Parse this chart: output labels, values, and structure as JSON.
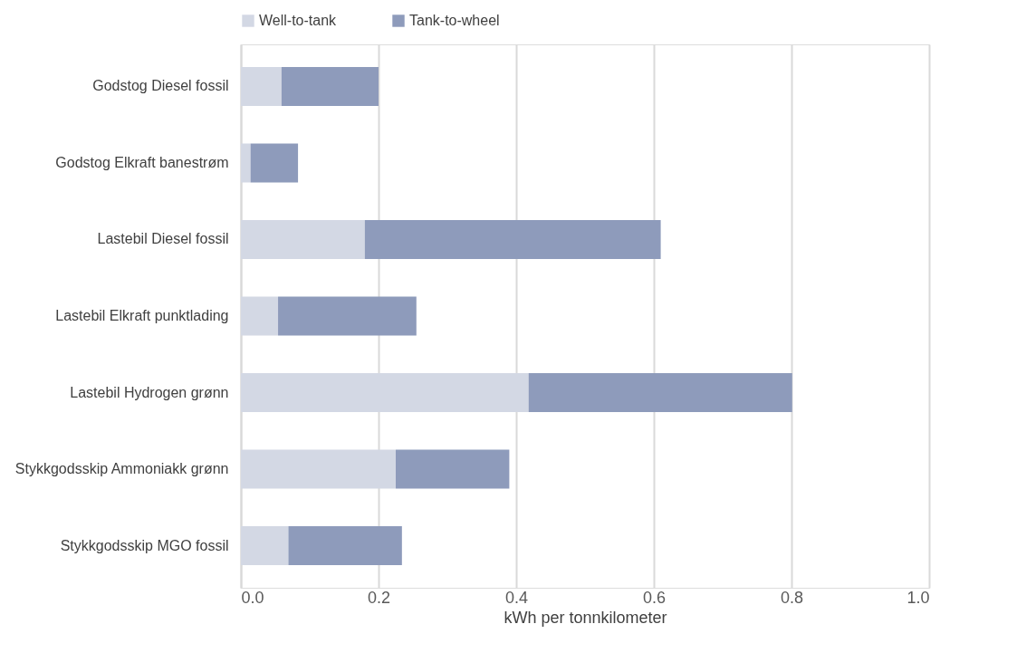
{
  "chart_data": {
    "type": "bar",
    "orientation": "horizontal",
    "stacked": true,
    "categories": [
      "Godstog Diesel fossil",
      "Godstog Elkraft banestrøm",
      "Lastebil Diesel fossil",
      "Lastebil Elkraft punktlading",
      "Lastebil Hydrogen grønn",
      "Stykkgodsskip Ammoniakk grønn",
      "Stykkgodsskip MGO fossil"
    ],
    "series": [
      {
        "name": "Well-to-tank",
        "color": "#d3d8e4",
        "values": [
          0.059,
          0.014,
          0.18,
          0.054,
          0.418,
          0.225,
          0.069
        ]
      },
      {
        "name": "Tank-to-wheel",
        "color": "#8e9bbb",
        "values": [
          0.141,
          0.069,
          0.43,
          0.201,
          0.383,
          0.165,
          0.165
        ]
      }
    ],
    "xlabel": "kWh per tonnkilometer",
    "xlim": [
      0,
      1
    ],
    "xticks": [
      {
        "value": 0,
        "label": "0.0"
      },
      {
        "value": 0.2,
        "label": "0.2"
      },
      {
        "value": 0.4,
        "label": "0.4"
      },
      {
        "value": 0.6,
        "label": "0.6"
      },
      {
        "value": 0.8,
        "label": "0.8"
      },
      {
        "value": 1,
        "label": "1.0"
      }
    ],
    "grid": "x",
    "legend": "top"
  }
}
